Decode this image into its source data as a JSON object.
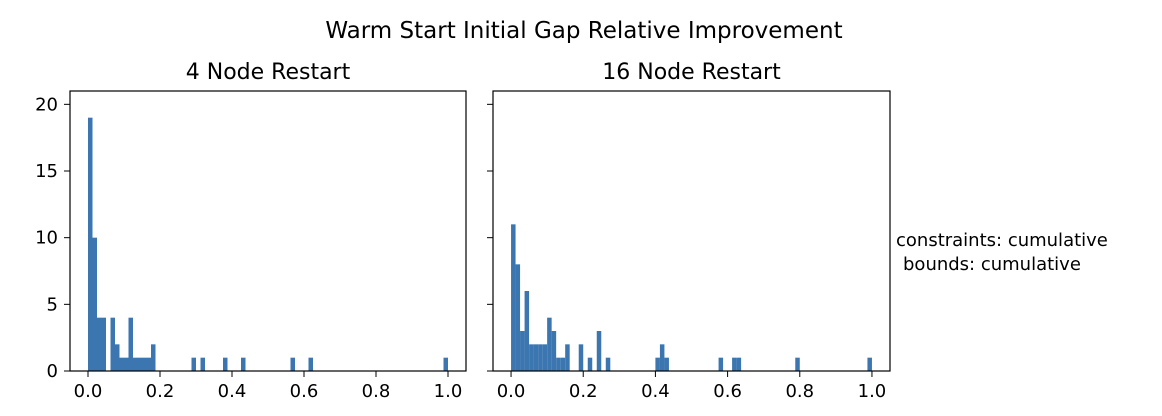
{
  "figure": {
    "suptitle": "Warm Start Initial Gap Relative Improvement",
    "side_text": [
      "constraints: cumulative",
      "bounds: cumulative"
    ]
  },
  "chart_data": [
    {
      "type": "bar",
      "title": "4 Node Restart",
      "bar_color": "#3b76b0",
      "xlim": [
        -0.05,
        1.05
      ],
      "ylim": [
        0,
        21
      ],
      "bin_width": 0.0125,
      "x_ticks": [
        0.0,
        0.2,
        0.4,
        0.6,
        0.8,
        1.0
      ],
      "x_tick_labels": [
        "0.0",
        "0.2",
        "0.4",
        "0.6",
        "0.8",
        "1.0"
      ],
      "y_ticks": [
        0,
        5,
        10,
        15,
        20
      ],
      "y_tick_labels": [
        "0",
        "5",
        "10",
        "15",
        "20"
      ],
      "grid": false,
      "x": [
        0.0,
        0.0125,
        0.025,
        0.0375,
        0.0625,
        0.075,
        0.0875,
        0.1,
        0.1125,
        0.125,
        0.1375,
        0.15,
        0.1625,
        0.175,
        0.2875,
        0.3125,
        0.375,
        0.425,
        0.5625,
        0.6125,
        0.9875
      ],
      "values": [
        19,
        10,
        4,
        4,
        4,
        2,
        1,
        1,
        4,
        1,
        1,
        1,
        1,
        2,
        1,
        1,
        1,
        1,
        1,
        1,
        1
      ]
    },
    {
      "type": "bar",
      "title": "16 Node Restart",
      "bar_color": "#3b76b0",
      "xlim": [
        -0.05,
        1.05
      ],
      "ylim": [
        0,
        21
      ],
      "bin_width": 0.0125,
      "x_ticks": [
        0.0,
        0.2,
        0.4,
        0.6,
        0.8,
        1.0
      ],
      "x_tick_labels": [
        "0.0",
        "0.2",
        "0.4",
        "0.6",
        "0.8",
        "1.0"
      ],
      "y_ticks": [
        0,
        5,
        10,
        15,
        20
      ],
      "y_tick_labels": [],
      "grid": false,
      "x": [
        0.0,
        0.0125,
        0.025,
        0.0375,
        0.05,
        0.0625,
        0.075,
        0.0875,
        0.1,
        0.1125,
        0.125,
        0.1375,
        0.15,
        0.1875,
        0.2125,
        0.2375,
        0.2625,
        0.4,
        0.4125,
        0.425,
        0.575,
        0.6125,
        0.625,
        0.7875,
        0.9875
      ],
      "values": [
        11,
        8,
        3,
        6,
        2,
        2,
        2,
        2,
        4,
        3,
        1,
        1,
        2,
        2,
        1,
        3,
        1,
        1,
        2,
        1,
        1,
        1,
        1,
        1,
        1
      ]
    }
  ]
}
